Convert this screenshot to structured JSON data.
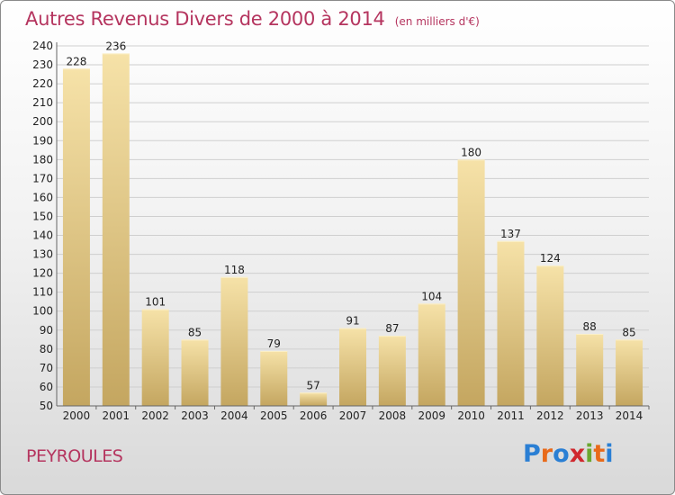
{
  "header": {
    "title": "Autres Revenus Divers de 2000 à 2014",
    "subtitle": "(en milliers d'€)"
  },
  "footer": {
    "commune": "PEYROULES",
    "logo": "Proxiti"
  },
  "colors": {
    "title": "#b5355f",
    "bar_top": "#f6e2a8",
    "bar_bottom": "#c4a660",
    "grid": "#cfcfcf"
  },
  "logo_letter_colors": [
    "#2a7fd4",
    "#e86a1a",
    "#2a7fd4",
    "#d0282e",
    "#6aa72f",
    "#e86a1a",
    "#2a7fd4"
  ],
  "chart_data": {
    "type": "bar",
    "title": "Autres Revenus Divers de 2000 à 2014",
    "subtitle": "(en milliers d'€)",
    "categories": [
      "2000",
      "2001",
      "2002",
      "2003",
      "2004",
      "2005",
      "2006",
      "2007",
      "2008",
      "2009",
      "2010",
      "2011",
      "2012",
      "2013",
      "2014"
    ],
    "values": [
      228,
      236,
      101,
      85,
      118,
      79,
      57,
      91,
      87,
      104,
      180,
      137,
      124,
      88,
      85
    ],
    "ylim": [
      50,
      240
    ],
    "ytick_step": 10,
    "grid": true,
    "legend": "none"
  }
}
